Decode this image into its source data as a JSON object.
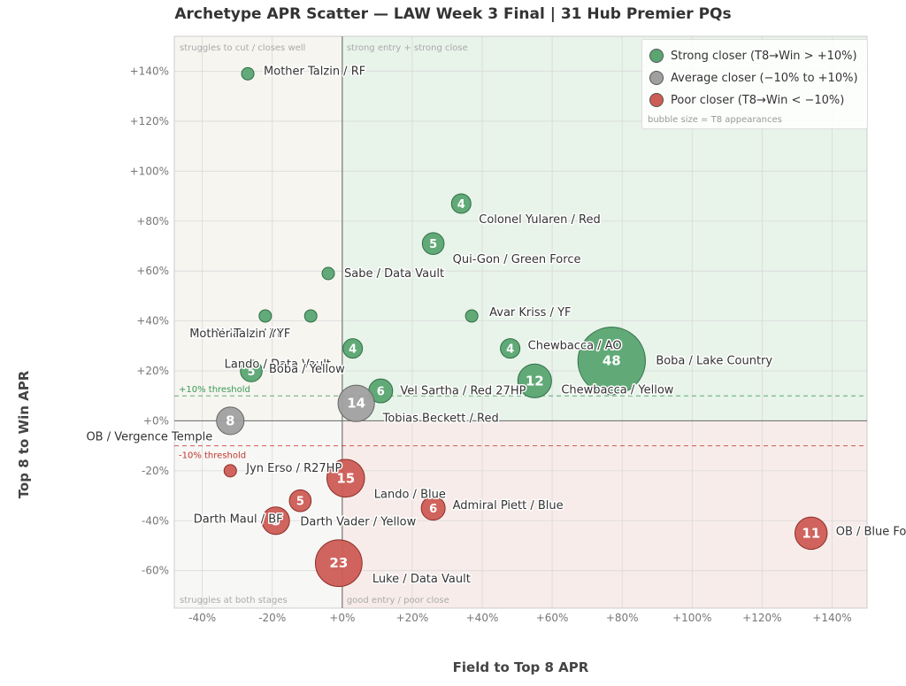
{
  "chart_data": {
    "type": "scatter",
    "title": "Archetype APR Scatter — LAW Week 3 Final  |  31 Hub Premier PQs",
    "xlabel": "Field to Top 8 APR",
    "ylabel": "Top 8 to Win APR",
    "xlim": [
      -48,
      150
    ],
    "ylim": [
      -75,
      154
    ],
    "x_ticks": [
      -40,
      -20,
      0,
      20,
      40,
      60,
      80,
      100,
      120,
      140
    ],
    "x_tick_labels": [
      "-40%",
      "-20%",
      "+0%",
      "+20%",
      "+40%",
      "+60%",
      "+80%",
      "+100%",
      "+120%",
      "+140%"
    ],
    "y_ticks": [
      -60,
      -40,
      -20,
      0,
      20,
      40,
      60,
      80,
      100,
      120,
      140
    ],
    "y_tick_labels": [
      "-60%",
      "-40%",
      "-20%",
      "+0%",
      "+20%",
      "+40%",
      "+60%",
      "+80%",
      "+100%",
      "+120%",
      "+140%"
    ],
    "grid": true,
    "thresholds": {
      "upper": {
        "value": 10,
        "label": "+10% threshold",
        "color": "#3a9a55"
      },
      "lower": {
        "value": -10,
        "label": "-10% threshold",
        "color": "#c0392b"
      }
    },
    "quadrant_labels": {
      "top_left": "struggles to cut / closes well",
      "top_right": "strong entry + strong close",
      "bottom_left": "struggles at both stages",
      "bottom_right": "good entry / poor close"
    },
    "colors": {
      "strong": "#5aa572",
      "average": "#a0a0a0",
      "poor": "#cd5c55",
      "q_top_right": "#e8f3ea",
      "q_bottom_right": "#f7ecea",
      "q_top_left": "#f6f5f0",
      "q_bottom_left": "#f7f7f6"
    },
    "series": [
      {
        "name": "Strong closer  (T8→Win > +10%)",
        "class": "strong",
        "points": [
          {
            "label": "Mother Talzin / RF",
            "x": -27,
            "y": 139,
            "n": 1
          },
          {
            "label": "Colonel Yularen / Red",
            "x": 34,
            "y": 87,
            "n": 4
          },
          {
            "label": "Qui-Gon / Green Force",
            "x": 26,
            "y": 71,
            "n": 5
          },
          {
            "label": "Sabe / Data Vault",
            "x": -4,
            "y": 59,
            "n": 1
          },
          {
            "label": "Avar Kriss / YF",
            "x": 37,
            "y": 42,
            "n": 1
          },
          {
            "label": "Col. Yularen / YF",
            "x": -22,
            "y": 42,
            "n": 1
          },
          {
            "label": "Mother Talzin / YF",
            "x": -9,
            "y": 42,
            "n": 1
          },
          {
            "label": "Chewbacca / AO",
            "x": 48,
            "y": 29,
            "n": 4
          },
          {
            "label": "Lando / Data Vault",
            "x": 3,
            "y": 29,
            "n": 4
          },
          {
            "label": "Boba / Yellow",
            "x": -26,
            "y": 20,
            "n": 5
          },
          {
            "label": "Boba / Lake Country",
            "x": 77,
            "y": 24,
            "n": 48
          },
          {
            "label": "Chewbacca / Yellow",
            "x": 55,
            "y": 16,
            "n": 12
          },
          {
            "label": "Vel Sartha / Red 27HP",
            "x": 11,
            "y": 12,
            "n": 6
          }
        ]
      },
      {
        "name": "Average closer  (−10% to +10%)",
        "class": "average",
        "points": [
          {
            "label": "Tobias Beckett / Red",
            "x": 4,
            "y": 7,
            "n": 14
          },
          {
            "label": "OB / Vergence Temple",
            "x": -32,
            "y": 0,
            "n": 8
          }
        ]
      },
      {
        "name": "Poor closer  (T8→Win < −10%)",
        "class": "poor",
        "points": [
          {
            "label": "Jyn Erso / R27HP",
            "x": -32,
            "y": -20,
            "n": 1
          },
          {
            "label": "Lando / Blue",
            "x": 1,
            "y": -23,
            "n": 15
          },
          {
            "label": "Admiral Piett / Blue",
            "x": 26,
            "y": -35,
            "n": 6
          },
          {
            "label": "Darth Maul / BF",
            "x": -19,
            "y": -40,
            "n": 8
          },
          {
            "label": "Darth Vader / Yellow",
            "x": -12,
            "y": -32,
            "n": 5
          },
          {
            "label": "Luke / Data Vault",
            "x": -1,
            "y": -57,
            "n": 23
          },
          {
            "label": "OB / Blue Force",
            "x": 134,
            "y": -45,
            "n": 11
          }
        ]
      }
    ],
    "legend": {
      "placement": "top-right",
      "note": "bubble size = T8 appearances"
    }
  }
}
